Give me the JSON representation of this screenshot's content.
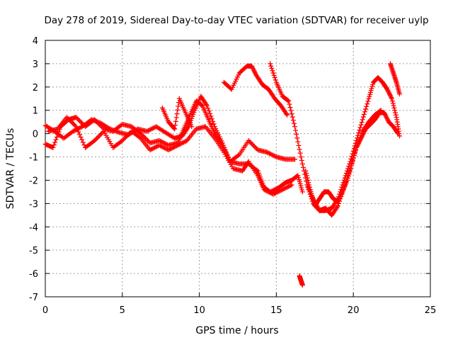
{
  "chart_data": {
    "type": "scatter",
    "title": "Day 278 of 2019, Sidereal Day-to-day VTEC variation (SDTVAR) for receiver uylp",
    "xlabel": "GPS time / hours",
    "ylabel": "SDTVAR / TECUs",
    "xlim": [
      0,
      25
    ],
    "ylim": [
      -7,
      4
    ],
    "xticks": [
      "0",
      "5",
      "10",
      "15",
      "20",
      "25"
    ],
    "yticks": [
      "4",
      "3",
      "2",
      "1",
      "0",
      "-1",
      "-2",
      "-3",
      "-4",
      "-5",
      "-6",
      "-7"
    ],
    "grid": true,
    "marker": "+",
    "series": [
      {
        "name": "track-1",
        "color": "#ff0000",
        "points": [
          [
            0,
            0.35
          ],
          [
            0.6,
            0.1
          ],
          [
            1.2,
            -0.2
          ],
          [
            1.8,
            0.1
          ],
          [
            2.4,
            0.3
          ],
          [
            3,
            0.6
          ],
          [
            3.6,
            0.45
          ],
          [
            4.2,
            0.2
          ],
          [
            4.8,
            0.05
          ],
          [
            5.4,
            -0.05
          ],
          [
            6,
            0.2
          ],
          [
            6.6,
            0.1
          ],
          [
            7.2,
            0.3
          ],
          [
            7.8,
            0.05
          ],
          [
            8.4,
            -0.2
          ],
          [
            8.9,
            -0.1
          ],
          [
            9.3,
            0.3
          ],
          [
            9.7,
            1
          ],
          [
            10.1,
            1.6
          ],
          [
            10.5,
            1.2
          ],
          [
            11,
            0.3
          ],
          [
            11.5,
            -0.4
          ],
          [
            12,
            -1.2
          ],
          [
            12.6,
            -0.9
          ],
          [
            13.2,
            -0.3
          ],
          [
            13.8,
            -0.7
          ],
          [
            14.4,
            -0.8
          ],
          [
            15,
            -1
          ],
          [
            15.6,
            -1.1
          ],
          [
            16.2,
            -1.1
          ]
        ]
      },
      {
        "name": "track-2",
        "color": "#ff0000",
        "points": [
          [
            0,
            -0.45
          ],
          [
            0.5,
            -0.6
          ],
          [
            1,
            0.3
          ],
          [
            1.5,
            0.6
          ],
          [
            2,
            0.7
          ],
          [
            2.6,
            0.3
          ],
          [
            3.2,
            0.6
          ],
          [
            3.8,
            0.2
          ],
          [
            4.4,
            0.1
          ],
          [
            5,
            0.4
          ],
          [
            5.6,
            0.3
          ],
          [
            6.2,
            0
          ],
          [
            6.8,
            -0.4
          ],
          [
            7.4,
            -0.3
          ],
          [
            8,
            -0.5
          ],
          [
            8.6,
            -0.4
          ],
          [
            9,
            0.2
          ],
          [
            9.4,
            0.8
          ],
          [
            9.8,
            1.4
          ],
          [
            10.2,
            1.2
          ],
          [
            10.6,
            0.6
          ],
          [
            11,
            0
          ],
          [
            11.5,
            -0.5
          ],
          [
            12,
            -1.2
          ],
          [
            12.6,
            -1.3
          ],
          [
            13.2,
            -1.3
          ],
          [
            13.8,
            -1.6
          ],
          [
            14.2,
            -2.3
          ],
          [
            14.6,
            -2.5
          ],
          [
            15.2,
            -2.3
          ],
          [
            15.6,
            -2.1
          ],
          [
            16,
            -2
          ],
          [
            16.4,
            -1.8
          ],
          [
            16.7,
            -2.5
          ]
        ]
      },
      {
        "name": "track-3",
        "color": "#ff0000",
        "points": [
          [
            0.2,
            0.1
          ],
          [
            0.8,
            0.2
          ],
          [
            1.4,
            0.7
          ],
          [
            2,
            0.3
          ],
          [
            2.6,
            -0.6
          ],
          [
            3.2,
            -0.3
          ],
          [
            3.8,
            0.1
          ],
          [
            4.4,
            -0.6
          ],
          [
            5,
            -0.3
          ],
          [
            5.6,
            0.1
          ],
          [
            6.2,
            -0.2
          ],
          [
            6.8,
            -0.7
          ],
          [
            7.4,
            -0.5
          ],
          [
            8,
            -0.7
          ],
          [
            8.6,
            -0.5
          ],
          [
            9.2,
            -0.3
          ],
          [
            9.8,
            0.2
          ],
          [
            10.4,
            0.3
          ],
          [
            11,
            -0.2
          ],
          [
            11.6,
            -0.8
          ],
          [
            12.2,
            -1.5
          ],
          [
            12.8,
            -1.6
          ],
          [
            13.2,
            -1.2
          ],
          [
            13.8,
            -1.8
          ],
          [
            14.2,
            -2.4
          ],
          [
            14.8,
            -2.6
          ],
          [
            15.4,
            -2.4
          ],
          [
            16,
            -2.2
          ]
        ]
      },
      {
        "name": "track-4",
        "color": "#ff0000",
        "points": [
          [
            7.6,
            1.1
          ],
          [
            8,
            0.5
          ],
          [
            8.4,
            0.2
          ],
          [
            8.7,
            1.5
          ],
          [
            9.1,
            0.9
          ],
          [
            9.5,
            0.3
          ]
        ]
      },
      {
        "name": "track-5",
        "color": "#ff0000",
        "points": [
          [
            11.6,
            2.2
          ],
          [
            12.1,
            1.9
          ],
          [
            12.6,
            2.6
          ],
          [
            13.1,
            2.9
          ],
          [
            13.4,
            2.9
          ],
          [
            13.7,
            2.5
          ],
          [
            14.1,
            2.1
          ],
          [
            14.5,
            1.9
          ],
          [
            14.9,
            1.5
          ],
          [
            15.3,
            1.2
          ],
          [
            15.7,
            0.8
          ]
        ]
      },
      {
        "name": "track-6",
        "color": "#ff0000",
        "points": [
          [
            14.6,
            3
          ],
          [
            15,
            2.2
          ],
          [
            15.4,
            1.6
          ],
          [
            15.8,
            1.4
          ],
          [
            16.2,
            0.3
          ],
          [
            16.6,
            -1
          ],
          [
            17,
            -2.2
          ],
          [
            17.4,
            -2.8
          ],
          [
            17.8,
            -3.3
          ],
          [
            18.2,
            -3.2
          ],
          [
            18.6,
            -3.5
          ],
          [
            19,
            -3.1
          ],
          [
            19.4,
            -2.3
          ],
          [
            19.8,
            -1.5
          ],
          [
            20.2,
            -0.6
          ],
          [
            20.6,
            0.1
          ],
          [
            21,
            0.5
          ],
          [
            21.4,
            0.8
          ],
          [
            21.8,
            1
          ]
        ]
      },
      {
        "name": "track-7",
        "color": "#ff0000",
        "points": [
          [
            16.9,
            -1.6
          ],
          [
            17.2,
            -2.4
          ],
          [
            17.5,
            -3.1
          ],
          [
            17.8,
            -2.8
          ],
          [
            18.1,
            -2.5
          ],
          [
            18.4,
            -2.5
          ],
          [
            18.7,
            -2.8
          ],
          [
            19,
            -2.9
          ],
          [
            19.3,
            -2.5
          ],
          [
            19.6,
            -2
          ],
          [
            19.9,
            -1.3
          ],
          [
            20.2,
            -0.6
          ],
          [
            20.5,
            -0.2
          ],
          [
            20.8,
            0.2
          ],
          [
            21.1,
            0.4
          ],
          [
            21.4,
            0.6
          ],
          [
            21.7,
            0.9
          ],
          [
            22,
            0.9
          ],
          [
            22.3,
            0.5
          ],
          [
            22.6,
            0.3
          ],
          [
            22.9,
            0
          ]
        ]
      },
      {
        "name": "track-8",
        "color": "#ff0000",
        "points": [
          [
            17,
            -2.2
          ],
          [
            17.4,
            -3
          ],
          [
            17.8,
            -3.3
          ],
          [
            18.2,
            -3.3
          ],
          [
            18.6,
            -3.2
          ],
          [
            19,
            -2.8
          ],
          [
            19.4,
            -2
          ],
          [
            19.8,
            -1.2
          ],
          [
            20.2,
            -0.3
          ],
          [
            20.6,
            0.6
          ],
          [
            21,
            1.5
          ],
          [
            21.3,
            2.2
          ],
          [
            21.6,
            2.4
          ],
          [
            21.9,
            2.2
          ],
          [
            22.2,
            1.9
          ],
          [
            22.5,
            1.5
          ],
          [
            22.8,
            0.7
          ],
          [
            23,
            -0.1
          ]
        ]
      },
      {
        "name": "track-9",
        "color": "#ff0000",
        "points": [
          [
            22.4,
            3
          ],
          [
            22.6,
            2.6
          ],
          [
            22.8,
            2.2
          ],
          [
            23,
            1.7
          ]
        ]
      },
      {
        "name": "track-10",
        "color": "#ff0000",
        "points": [
          [
            16.5,
            -6.1
          ],
          [
            16.6,
            -6.3
          ],
          [
            16.7,
            -6.5
          ]
        ]
      }
    ]
  }
}
